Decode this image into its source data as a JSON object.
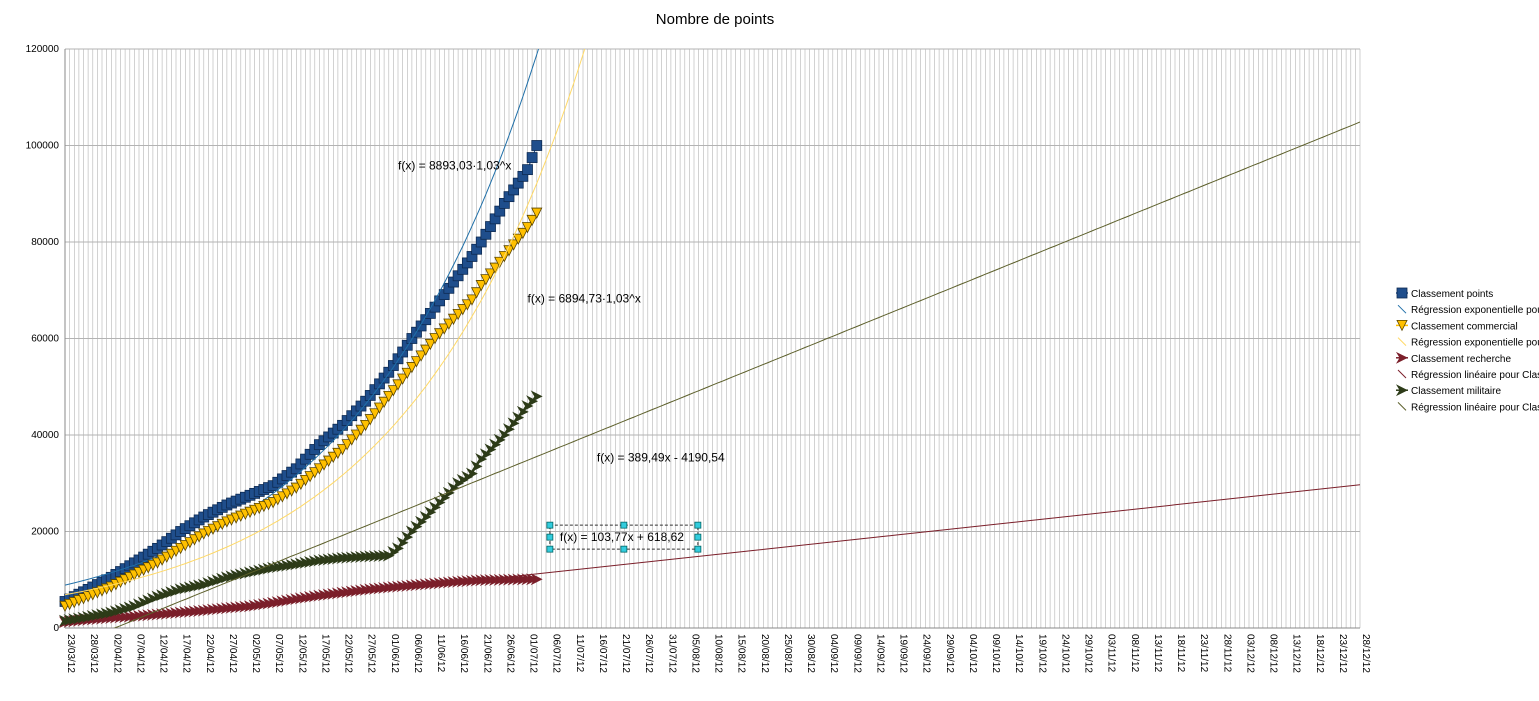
{
  "chart_data": {
    "type": "line",
    "title": "Nombre de points",
    "xlabel": "",
    "ylabel": "",
    "ylim": [
      0,
      120000
    ],
    "y_ticks": [
      0,
      20000,
      40000,
      60000,
      80000,
      100000,
      120000
    ],
    "x_tick_labels": [
      "23/03/12",
      "28/03/12",
      "02/04/12",
      "07/04/12",
      "12/04/12",
      "17/04/12",
      "22/04/12",
      "27/04/12",
      "02/05/12",
      "07/05/12",
      "12/05/12",
      "17/05/12",
      "22/05/12",
      "27/05/12",
      "01/06/12",
      "06/06/12",
      "11/06/12",
      "16/06/12",
      "21/06/12",
      "26/06/12",
      "01/07/12",
      "06/07/12",
      "11/07/12",
      "16/07/12",
      "21/07/12",
      "26/07/12",
      "31/07/12",
      "05/08/12",
      "10/08/12",
      "15/08/12",
      "20/08/12",
      "25/08/12",
      "30/08/12",
      "04/09/12",
      "09/09/12",
      "14/09/12",
      "19/09/12",
      "24/09/12",
      "29/09/12",
      "04/10/12",
      "09/10/12",
      "14/10/12",
      "19/10/12",
      "24/10/12",
      "29/10/12",
      "03/11/12",
      "08/11/12",
      "13/11/12",
      "18/11/12",
      "23/11/12",
      "28/11/12",
      "03/12/12",
      "08/12/12",
      "13/12/12",
      "18/12/12",
      "23/12/12",
      "28/12/12"
    ],
    "grid": true,
    "legend_position": "right",
    "series": [
      {
        "name": "Classement points",
        "color": "#1f4e8c",
        "marker": "square",
        "x_days": [
          0,
          5,
          10,
          15,
          20,
          25,
          30,
          35,
          40,
          45,
          50,
          55,
          60,
          65,
          70,
          75,
          80,
          85,
          88,
          90,
          95,
          100,
          102
        ],
        "values": [
          5500,
          8000,
          10500,
          13500,
          16500,
          20000,
          23000,
          25500,
          27500,
          29500,
          33000,
          38000,
          42000,
          47000,
          53000,
          60000,
          66500,
          73000,
          77000,
          80000,
          88000,
          95000,
          100000
        ]
      },
      {
        "name": "Régression exponentielle pour Classement points",
        "color": "#1f6fa8",
        "marker": "none",
        "trend": "exponential",
        "a": 8893.03,
        "b": 1.03
      },
      {
        "name": "Classement commercial",
        "color": "#ffc000",
        "marker": "triangle",
        "x_days": [
          0,
          5,
          10,
          15,
          20,
          25,
          30,
          35,
          40,
          45,
          50,
          55,
          60,
          65,
          70,
          75,
          80,
          85,
          88,
          90,
          95,
          100,
          102
        ],
        "values": [
          4500,
          6500,
          8500,
          11000,
          13500,
          16500,
          19500,
          22000,
          24000,
          26000,
          29000,
          33000,
          37000,
          42000,
          48000,
          54000,
          60000,
          65000,
          68000,
          71000,
          77000,
          83000,
          86000
        ]
      },
      {
        "name": "Régression exponentielle pour Classement commercial",
        "color": "#ffd966",
        "marker": "none",
        "trend": "exponential",
        "a": 6894.73,
        "b": 1.03
      },
      {
        "name": "Classement recherche",
        "color": "#7b1f2a",
        "marker": "arrow",
        "x_days": [
          0,
          5,
          10,
          15,
          20,
          25,
          30,
          35,
          40,
          45,
          50,
          55,
          60,
          65,
          70,
          75,
          80,
          85,
          90,
          95,
          100,
          102
        ],
        "values": [
          1200,
          1700,
          2100,
          2400,
          2800,
          3200,
          3600,
          4100,
          4500,
          5200,
          6000,
          6700,
          7300,
          7900,
          8400,
          8800,
          9200,
          9600,
          9900,
          10000,
          10100,
          10100
        ]
      },
      {
        "name": "Régression linéaire pour Classement recherche",
        "color": "#7b1f2a",
        "marker": "none",
        "trend": "linear",
        "slope": 103.77,
        "intercept": 618.62
      },
      {
        "name": "Classement militaire",
        "color": "#2d3b18",
        "marker": "arrow",
        "x_days": [
          0,
          5,
          10,
          15,
          20,
          25,
          30,
          35,
          40,
          45,
          50,
          55,
          60,
          65,
          70,
          72,
          75,
          80,
          85,
          88,
          90,
          95,
          100,
          102
        ],
        "values": [
          1500,
          2300,
          3200,
          4500,
          6500,
          8000,
          9000,
          10500,
          11500,
          12500,
          13200,
          14000,
          14500,
          14800,
          15000,
          16500,
          20000,
          25000,
          30000,
          32000,
          35000,
          40000,
          46000,
          48000
        ]
      },
      {
        "name": "Régression linéaire pour Classement militaire",
        "color": "#5c5f2a",
        "marker": "none",
        "trend": "linear",
        "slope": 389.49,
        "intercept": -4190.54
      }
    ],
    "annotations": [
      {
        "text": "f(x) = 8893,03·1,03^x",
        "at_day": 72,
        "at_value": 95000
      },
      {
        "text": "f(x) = 6894,73·1,03^x",
        "at_day": 100,
        "at_value": 67500
      },
      {
        "text": "f(x) = 389,49x - 4190,54",
        "at_day": 115,
        "at_value": 34500
      },
      {
        "text": "f(x) = 103,77x + 618,62",
        "at_day": 107,
        "at_value": 18000
      }
    ]
  }
}
